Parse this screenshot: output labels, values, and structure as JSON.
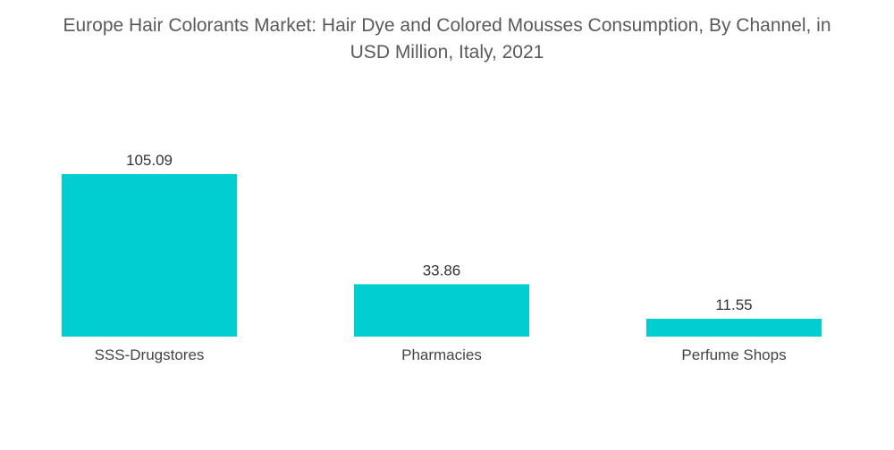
{
  "chart_data": {
    "type": "bar",
    "title_lines": [
      "Europe Hair Colorants Market: Hair Dye and Colored Mousses Consumption, By Channel, in",
      "USD Million, Italy, 2021"
    ],
    "categories": [
      "SSS-Drugstores",
      "Pharmacies",
      "Perfume Shops"
    ],
    "values": [
      105.09,
      33.86,
      11.55
    ],
    "value_labels": [
      "105.09",
      "33.86",
      "11.55"
    ],
    "xlabel": "",
    "ylabel": "",
    "ylim": [
      0,
      105.09
    ],
    "grid": false,
    "legend": "none",
    "bar_color": "#00CED1"
  }
}
